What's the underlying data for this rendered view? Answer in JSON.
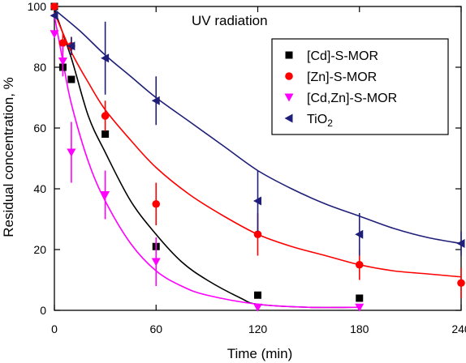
{
  "chart_data": {
    "type": "scatter",
    "title": "UV radiation",
    "xlabel": "Time (min)",
    "ylabel": "Residual concentration, %",
    "xlim": [
      0,
      240
    ],
    "ylim": [
      0,
      100
    ],
    "xticks": [
      0,
      60,
      120,
      180,
      240
    ],
    "yticks": [
      0,
      20,
      40,
      60,
      80,
      100
    ],
    "grid": false,
    "legend_position": "top-right",
    "series": [
      {
        "name": "[Cd]-S-MOR",
        "color": "#000000",
        "marker": "square",
        "x": [
          0,
          5,
          10,
          30,
          60,
          120,
          180
        ],
        "y": [
          100,
          80,
          76,
          58,
          21,
          5,
          4
        ],
        "err": [
          0,
          0,
          0,
          0,
          0,
          0,
          0
        ],
        "fit": [
          [
            0,
            99
          ],
          [
            10,
            83
          ],
          [
            20,
            64
          ],
          [
            30,
            52
          ],
          [
            45,
            36
          ],
          [
            60,
            25
          ],
          [
            75,
            16
          ],
          [
            90,
            10
          ],
          [
            110,
            4
          ],
          [
            120,
            2
          ],
          [
            150,
            1
          ],
          [
            180,
            1
          ]
        ]
      },
      {
        "name": "[Zn]-S-MOR",
        "color": "#ff0000",
        "marker": "circle",
        "x": [
          0,
          5,
          10,
          30,
          60,
          120,
          180,
          240
        ],
        "y": [
          100,
          88,
          87,
          64,
          35,
          25,
          15,
          9
        ],
        "err": [
          0,
          3,
          3,
          5,
          7,
          7,
          5,
          5
        ],
        "fit": [
          [
            0,
            98
          ],
          [
            10,
            85
          ],
          [
            20,
            75
          ],
          [
            30,
            66
          ],
          [
            45,
            56
          ],
          [
            60,
            47
          ],
          [
            80,
            38
          ],
          [
            100,
            31
          ],
          [
            120,
            25
          ],
          [
            140,
            21
          ],
          [
            160,
            18
          ],
          [
            180,
            15
          ],
          [
            200,
            13
          ],
          [
            220,
            12
          ],
          [
            240,
            11
          ]
        ]
      },
      {
        "name": "[Cd,Zn]-S-MOR",
        "color": "#ff00ff",
        "marker": "triangle-down",
        "x": [
          0,
          5,
          10,
          30,
          60,
          120,
          180
        ],
        "y": [
          91,
          82,
          52,
          38,
          16,
          1,
          1
        ],
        "err": [
          0,
          5,
          10,
          8,
          8,
          1,
          1
        ],
        "fit": [
          [
            0,
            97
          ],
          [
            5,
            82
          ],
          [
            10,
            68
          ],
          [
            20,
            49
          ],
          [
            30,
            36
          ],
          [
            45,
            22
          ],
          [
            60,
            13
          ],
          [
            75,
            8
          ],
          [
            90,
            5
          ],
          [
            120,
            2
          ],
          [
            150,
            1
          ],
          [
            180,
            1
          ]
        ]
      },
      {
        "name": "TiO2",
        "color": "#1f1f7a",
        "marker": "triangle-left",
        "x": [
          0,
          10,
          30,
          60,
          120,
          180,
          240
        ],
        "y": [
          97,
          87,
          83,
          69,
          36,
          25,
          22
        ],
        "err": [
          0,
          3,
          12,
          8,
          10,
          7,
          4
        ],
        "fit": [
          [
            0,
            99
          ],
          [
            15,
            92
          ],
          [
            30,
            84
          ],
          [
            45,
            77
          ],
          [
            60,
            70
          ],
          [
            80,
            62
          ],
          [
            100,
            54
          ],
          [
            120,
            46
          ],
          [
            140,
            40
          ],
          [
            160,
            35
          ],
          [
            180,
            31
          ],
          [
            200,
            27
          ],
          [
            220,
            24
          ],
          [
            240,
            22
          ]
        ]
      }
    ]
  }
}
